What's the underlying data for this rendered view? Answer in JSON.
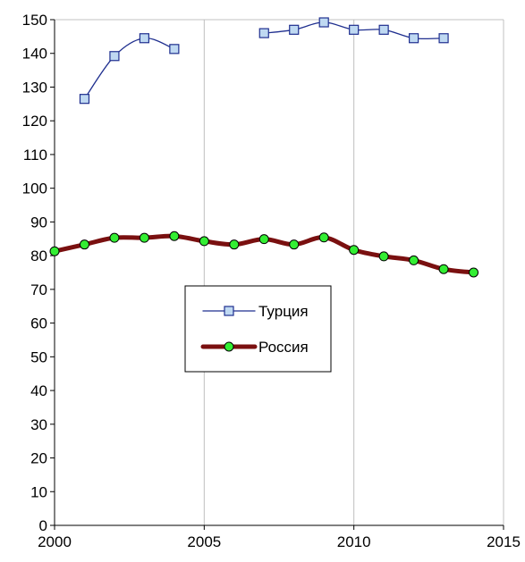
{
  "chart_data": {
    "type": "line",
    "title": "",
    "xlabel": "",
    "ylabel": "",
    "xlim": [
      2000,
      2015
    ],
    "ylim": [
      0,
      150
    ],
    "x_ticks": [
      2000,
      2005,
      2010,
      2015
    ],
    "y_ticks": [
      0,
      10,
      20,
      30,
      40,
      50,
      60,
      70,
      80,
      90,
      100,
      110,
      120,
      130,
      140,
      150
    ],
    "grid": "vertical",
    "legend_position": "center",
    "series": [
      {
        "name": "Турция",
        "color": "#1F2F8F",
        "marker": "square",
        "marker_fill": "#BFD9F2",
        "line_width": "thin",
        "segments": [
          {
            "x": [
              2001,
              2002,
              2003,
              2004
            ],
            "y": [
              126.5,
              139.2,
              144.5,
              141.3
            ]
          },
          {
            "x": [
              2007,
              2008,
              2009,
              2010,
              2011,
              2012,
              2013
            ],
            "y": [
              146.0,
              147.0,
              149.2,
              147.0,
              147.0,
              144.5,
              144.5
            ]
          }
        ]
      },
      {
        "name": "Россия",
        "color": "#7A1010",
        "marker": "circle",
        "marker_fill": "#33EE33",
        "line_width": "thick",
        "segments": [
          {
            "x": [
              2000,
              2001,
              2002,
              2003,
              2004,
              2005,
              2006,
              2007,
              2008,
              2009,
              2010,
              2011,
              2012,
              2013,
              2014
            ],
            "y": [
              81.3,
              83.3,
              85.3,
              85.3,
              85.8,
              84.3,
              83.3,
              84.9,
              83.3,
              85.4,
              81.7,
              79.8,
              78.6,
              76.0,
              75.0
            ]
          }
        ]
      }
    ]
  }
}
